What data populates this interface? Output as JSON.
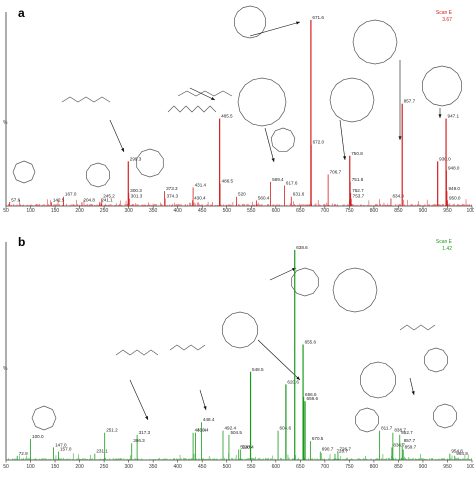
{
  "figure": {
    "panels": [
      "a",
      "b"
    ]
  },
  "colors": {
    "panel_a_peaks": "#d42020",
    "panel_b_peaks": "#1a9a1a",
    "axis": "#333333",
    "label": "#222222",
    "structure": "#555555"
  },
  "chart_data": [
    {
      "type": "mass-spectrum",
      "panel": "a",
      "corner_text": [
        "Scan E",
        "3.67"
      ],
      "y_axis_fragment": "%",
      "xlim": [
        50,
        1000
      ],
      "x_ticks": [
        "50",
        "100",
        "150",
        "200",
        "250",
        "300",
        "350",
        "400",
        "450",
        "500",
        "550",
        "600",
        "650",
        "700",
        "750",
        "800",
        "850",
        "900",
        "950",
        "1000"
      ],
      "labeled_peaks": [
        {
          "mz": 57.6,
          "label": "57.6",
          "rel": 2
        },
        {
          "mz": 142.5,
          "label": "142.5",
          "rel": 2
        },
        {
          "mz": 167.0,
          "label": "167.0",
          "rel": 5
        },
        {
          "mz": 204.8,
          "label": "204.8",
          "rel": 2
        },
        {
          "mz": 241.1,
          "label": "241.1",
          "rel": 2
        },
        {
          "mz": 245.2,
          "label": "245.2",
          "rel": 4
        },
        {
          "mz": 299.3,
          "label": "299.3",
          "rel": 24
        },
        {
          "mz": 300.3,
          "label": "300.3",
          "rel": 7
        },
        {
          "mz": 301.3,
          "label": "301.3",
          "rel": 4
        },
        {
          "mz": 373.3,
          "label": "373.3",
          "rel": 8
        },
        {
          "mz": 374.3,
          "label": "374.3",
          "rel": 4
        },
        {
          "mz": 430.4,
          "label": "430.4",
          "rel": 3
        },
        {
          "mz": 431.4,
          "label": "431.4",
          "rel": 10
        },
        {
          "mz": 485.5,
          "label": "485.5",
          "rel": 47
        },
        {
          "mz": 486.5,
          "label": "486.5",
          "rel": 12
        },
        {
          "mz": 520.0,
          "label": "520",
          "rel": 5
        },
        {
          "mz": 560.4,
          "label": "560.4",
          "rel": 3
        },
        {
          "mz": 589.4,
          "label": "589.4",
          "rel": 13
        },
        {
          "mz": 617.6,
          "label": "617.6",
          "rel": 11
        },
        {
          "mz": 631.6,
          "label": "631.6",
          "rel": 5
        },
        {
          "mz": 671.6,
          "label": "671.6",
          "rel": 100
        },
        {
          "mz": 672.0,
          "label": "672.0",
          "rel": 33
        },
        {
          "mz": 706.7,
          "label": "706.7",
          "rel": 17
        },
        {
          "mz": 750.8,
          "label": "750.8",
          "rel": 27
        },
        {
          "mz": 751.8,
          "label": "751.8",
          "rel": 13
        },
        {
          "mz": 752.7,
          "label": "752.7",
          "rel": 7
        },
        {
          "mz": 753.7,
          "label": "753.7",
          "rel": 4
        },
        {
          "mz": 834.8,
          "label": "834.8",
          "rel": 4
        },
        {
          "mz": 857.7,
          "label": "857.7",
          "rel": 55
        },
        {
          "mz": 930.0,
          "label": "930.0",
          "rel": 24
        },
        {
          "mz": 947.1,
          "label": "947.1",
          "rel": 47
        },
        {
          "mz": 948.0,
          "label": "948.0",
          "rel": 19
        },
        {
          "mz": 949.0,
          "label": "949.0",
          "rel": 8
        },
        {
          "mz": 950.0,
          "label": "950.0",
          "rel": 3
        }
      ]
    },
    {
      "type": "mass-spectrum",
      "panel": "b",
      "corner_text": [
        "Scan E",
        "1.42"
      ],
      "y_axis_fragment": "%",
      "xlim": [
        50,
        1000
      ],
      "x_ticks": [
        "50",
        "100",
        "150",
        "200",
        "250",
        "300",
        "350",
        "400",
        "450",
        "500",
        "550",
        "600",
        "650",
        "700",
        "750",
        "800",
        "850",
        "900",
        "950",
        "1000"
      ],
      "labeled_peaks": [
        {
          "mz": 72.9,
          "label": "72.9",
          "rel": 2
        },
        {
          "mz": 100.0,
          "label": "100.0",
          "rel": 10
        },
        {
          "mz": 147.0,
          "label": "147.0",
          "rel": 6
        },
        {
          "mz": 157.0,
          "label": "157.0",
          "rel": 4
        },
        {
          "mz": 231.1,
          "label": "231.1",
          "rel": 3
        },
        {
          "mz": 251.2,
          "label": "251.2",
          "rel": 13
        },
        {
          "mz": 306.3,
          "label": "306.3",
          "rel": 8
        },
        {
          "mz": 317.3,
          "label": "317.3",
          "rel": 12
        },
        {
          "mz": 431.4,
          "label": "431.4",
          "rel": 13
        },
        {
          "mz": 436.4,
          "label": "436.4",
          "rel": 13
        },
        {
          "mz": 448.4,
          "label": "448.4",
          "rel": 18
        },
        {
          "mz": 492.4,
          "label": "492.4",
          "rel": 14
        },
        {
          "mz": 504.5,
          "label": "504.5",
          "rel": 12
        },
        {
          "mz": 524.5,
          "label": "524.5",
          "rel": 5
        },
        {
          "mz": 528.4,
          "label": "528.4",
          "rel": 5
        },
        {
          "mz": 548.5,
          "label": "548.5",
          "rel": 42
        },
        {
          "mz": 604.6,
          "label": "604.6",
          "rel": 14
        },
        {
          "mz": 620.6,
          "label": "620.6",
          "rel": 36
        },
        {
          "mz": 638.6,
          "label": "638.6",
          "rel": 100
        },
        {
          "mz": 655.6,
          "label": "655.6",
          "rel": 55
        },
        {
          "mz": 656.6,
          "label": "656.6",
          "rel": 30
        },
        {
          "mz": 659.6,
          "label": "659.6",
          "rel": 28
        },
        {
          "mz": 670.5,
          "label": "670.5",
          "rel": 9
        },
        {
          "mz": 690.7,
          "label": "690.7",
          "rel": 4
        },
        {
          "mz": 720.7,
          "label": "720.7",
          "rel": 3
        },
        {
          "mz": 726.7,
          "label": "726.7",
          "rel": 4
        },
        {
          "mz": 811.7,
          "label": "811.7",
          "rel": 14
        },
        {
          "mz": 836.7,
          "label": "836.7",
          "rel": 6
        },
        {
          "mz": 838.7,
          "label": "838.7",
          "rel": 13
        },
        {
          "mz": 852.7,
          "label": "852.7",
          "rel": 12
        },
        {
          "mz": 857.7,
          "label": "857.7",
          "rel": 8
        },
        {
          "mz": 859.7,
          "label": "859.7",
          "rel": 5
        },
        {
          "mz": 954.8,
          "label": "954.8",
          "rel": 3
        },
        {
          "mz": 964.9,
          "label": "964.9",
          "rel": 2
        }
      ]
    }
  ]
}
